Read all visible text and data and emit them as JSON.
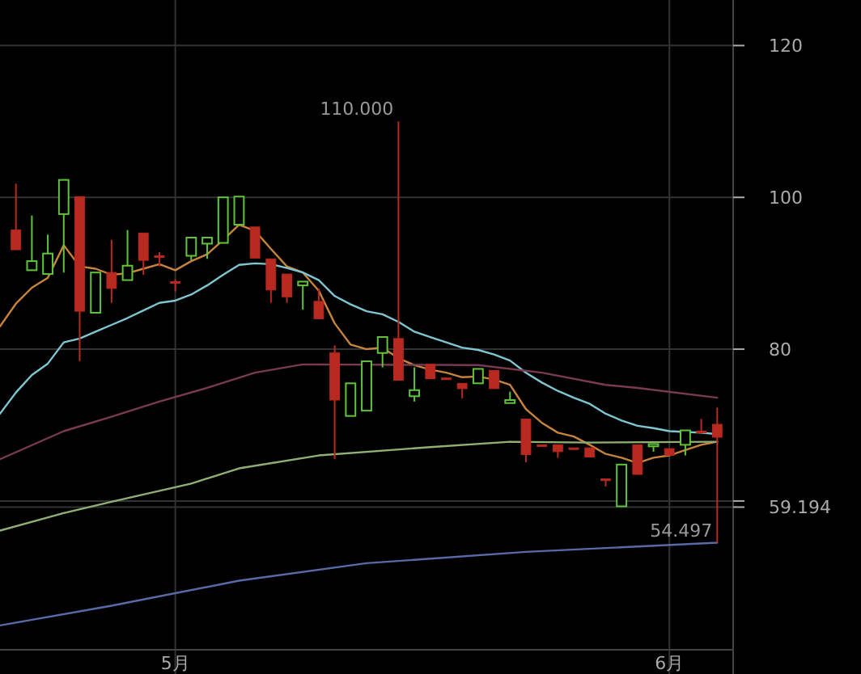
{
  "chart_data": {
    "type": "candlestick",
    "x": [
      "--04-21",
      "--04-22",
      "--04-23",
      "--04-24",
      "--04-25",
      "--04-26",
      "--04-27",
      "--04-28",
      "--04-29",
      "--04-30",
      "--05-01",
      "--05-02",
      "--05-03",
      "--05-04",
      "--05-05",
      "--05-06",
      "--05-07",
      "--05-08",
      "--05-09",
      "--05-10",
      "--05-11",
      "--05-12",
      "--05-13",
      "--05-14",
      "--05-15",
      "--05-16",
      "--05-17",
      "--05-18",
      "--05-19",
      "--05-20",
      "--05-21",
      "--05-22",
      "--05-23",
      "--05-24",
      "--05-25",
      "--05-26",
      "--05-27",
      "--05-28",
      "--05-29",
      "--05-30",
      "--05-31",
      "--06-01",
      "--06-02",
      "--06-03",
      "--06-04"
    ],
    "ohlc": [
      [
        95.7,
        101.8,
        93.1,
        93.1
      ],
      [
        90.4,
        97.6,
        90.4,
        91.6
      ],
      [
        89.9,
        95.1,
        89.9,
        92.6
      ],
      [
        97.8,
        102.3,
        90.1,
        102.3
      ],
      [
        100.1,
        100.1,
        78.4,
        85.0
      ],
      [
        84.8,
        90.1,
        84.8,
        90.1
      ],
      [
        90.1,
        94.4,
        86.1,
        88.0
      ],
      [
        89.1,
        95.7,
        89.1,
        91.0
      ],
      [
        95.3,
        95.3,
        89.8,
        91.7
      ],
      [
        92.3,
        92.8,
        90.9,
        92.3
      ],
      [
        88.9,
        89.2,
        87.6,
        88.9
      ],
      [
        92.3,
        94.7,
        91.7,
        94.7
      ],
      [
        93.9,
        94.7,
        91.9,
        94.7
      ],
      [
        94.0,
        100.0,
        94.0,
        100.0
      ],
      [
        96.4,
        100.1,
        96.4,
        100.1
      ],
      [
        96.1,
        96.1,
        92.0,
        92.0
      ],
      [
        91.9,
        91.9,
        86.1,
        87.8
      ],
      [
        89.9,
        89.9,
        86.1,
        86.9
      ],
      [
        88.4,
        88.9,
        85.2,
        88.9
      ],
      [
        86.3,
        88.0,
        84.0,
        84.0
      ],
      [
        79.5,
        80.5,
        65.5,
        73.3
      ],
      [
        71.2,
        75.5,
        71.2,
        75.5
      ],
      [
        71.9,
        78.4,
        71.9,
        78.4
      ],
      [
        79.5,
        81.6,
        77.6,
        81.6
      ],
      [
        81.4,
        110.0,
        75.9,
        75.9
      ],
      [
        73.8,
        77.6,
        73.1,
        74.6
      ],
      [
        78.0,
        78.0,
        76.1,
        76.1
      ],
      [
        76.2,
        76.2,
        76.0,
        76.0
      ],
      [
        75.5,
        75.5,
        73.5,
        74.8
      ],
      [
        75.5,
        77.4,
        75.5,
        77.4
      ],
      [
        77.2,
        77.2,
        74.8,
        74.8
      ],
      [
        72.9,
        74.4,
        72.9,
        73.3
      ],
      [
        70.8,
        70.8,
        65.1,
        66.1
      ],
      [
        67.4,
        67.4,
        67.4,
        67.4
      ],
      [
        67.4,
        67.4,
        65.7,
        66.5
      ],
      [
        67.0,
        67.0,
        67.0,
        67.0
      ],
      [
        67.0,
        67.0,
        65.8,
        65.8
      ],
      [
        62.9,
        62.9,
        61.9,
        62.9
      ],
      [
        59.3,
        64.8,
        59.3,
        64.8
      ],
      [
        67.4,
        67.4,
        63.5,
        63.5
      ],
      [
        67.2,
        67.5,
        66.5,
        67.5
      ],
      [
        66.9,
        66.9,
        66.0,
        66.0
      ],
      [
        67.4,
        69.3,
        66.0,
        69.3
      ],
      [
        69.2,
        70.8,
        69.0,
        69.0
      ],
      [
        70.1,
        72.3,
        54.497,
        68.4
      ]
    ],
    "colors": [
      "#b8291f",
      "#5fc43a",
      "#5fc43a",
      "#5fc43a",
      "#b8291f",
      "#5fc43a",
      "#b8291f",
      "#5fc43a",
      "#b8291f",
      "#b8291f",
      "#b8291f",
      "#5fc43a",
      "#5fc43a",
      "#5fc43a",
      "#5fc43a",
      "#b8291f",
      "#b8291f",
      "#b8291f",
      "#5fc43a",
      "#b8291f",
      "#b8291f",
      "#5fc43a",
      "#5fc43a",
      "#5fc43a",
      "#b8291f",
      "#5fc43a",
      "#b8291f",
      "#b8291f",
      "#b8291f",
      "#5fc43a",
      "#b8291f",
      "#5fc43a",
      "#b8291f",
      "#b8291f",
      "#b8291f",
      "#b8291f",
      "#b8291f",
      "#b8291f",
      "#5fc43a",
      "#b8291f",
      "#5fc43a",
      "#b8291f",
      "#5fc43a",
      "#b8291f",
      "#b8291f"
    ],
    "series": [
      {
        "type": "line",
        "color": "#c8843c",
        "x": [
          "--04-20",
          "--04-21",
          "--04-22",
          "--04-23",
          "--04-24",
          "--04-25",
          "--04-26",
          "--04-27",
          "--04-28",
          "--04-29",
          "--04-30",
          "--05-01",
          "--05-02",
          "--05-03",
          "--05-04",
          "--05-05",
          "--05-06",
          "--05-07",
          "--05-08",
          "--05-09",
          "--05-10",
          "--05-11",
          "--05-12",
          "--05-13",
          "--05-14",
          "--05-15",
          "--05-16",
          "--05-17",
          "--05-18",
          "--05-19",
          "--05-20",
          "--05-21",
          "--05-22",
          "--05-23",
          "--05-24",
          "--05-25",
          "--05-26",
          "--05-27",
          "--05-28",
          "--05-29",
          "--05-30",
          "--05-31",
          "--06-01",
          "--06-02",
          "--06-03",
          "--06-04"
        ],
        "values": [
          83.0,
          86.0,
          88.1,
          89.4,
          93.7,
          90.9,
          90.6,
          89.8,
          90.0,
          90.6,
          91.2,
          90.4,
          91.6,
          92.5,
          94.4,
          96.4,
          95.6,
          93.2,
          90.9,
          90.1,
          87.7,
          83.4,
          80.6,
          80.0,
          80.2,
          78.8,
          77.9,
          77.3,
          76.9,
          76.3,
          76.4,
          76.0,
          75.3,
          72.1,
          70.3,
          69.0,
          68.5,
          67.4,
          66.2,
          65.7,
          65.0,
          65.7,
          66.0,
          66.7,
          67.4,
          67.8
        ]
      },
      {
        "type": "line",
        "color": "#7ec6d2",
        "x": [
          "--04-20",
          "--04-21",
          "--04-22",
          "--04-23",
          "--04-24",
          "--04-25",
          "--04-26",
          "--04-27",
          "--04-28",
          "--04-29",
          "--04-30",
          "--05-01",
          "--05-02",
          "--05-03",
          "--05-04",
          "--05-05",
          "--05-06",
          "--05-07",
          "--05-08",
          "--05-09",
          "--05-10",
          "--05-11",
          "--05-12",
          "--05-13",
          "--05-14",
          "--05-15",
          "--05-16",
          "--05-17",
          "--05-18",
          "--05-19",
          "--05-20",
          "--05-21",
          "--05-22",
          "--05-23",
          "--05-24",
          "--05-25",
          "--05-26",
          "--05-27",
          "--05-28",
          "--05-29",
          "--05-30",
          "--05-31",
          "--06-01",
          "--06-02",
          "--06-03",
          "--06-04"
        ],
        "values": [
          71.5,
          74.3,
          76.6,
          78.1,
          80.9,
          81.4,
          82.3,
          83.2,
          84.1,
          85.1,
          86.1,
          86.4,
          87.2,
          88.4,
          89.8,
          91.1,
          91.3,
          91.2,
          90.7,
          90.1,
          89.1,
          87.0,
          85.9,
          85.0,
          84.6,
          83.6,
          82.3,
          81.6,
          80.9,
          80.2,
          79.9,
          79.3,
          78.5,
          76.9,
          75.6,
          74.5,
          73.6,
          72.8,
          71.5,
          70.6,
          69.9,
          69.6,
          69.2,
          69.1,
          69.0,
          68.8
        ]
      },
      {
        "type": "line",
        "color": "#7a3a52",
        "x": [
          "--04-20",
          "--04-24",
          "--04-27",
          "--04-30",
          "--05-03",
          "--05-06",
          "--05-09",
          "--05-20",
          "--05-24",
          "--05-28",
          "--05-30",
          "--06-04"
        ],
        "values": [
          65.5,
          69.2,
          71.1,
          73.1,
          74.9,
          76.9,
          78.0,
          77.9,
          76.9,
          75.3,
          74.9,
          73.6
        ]
      },
      {
        "type": "line",
        "color": "#8fb072",
        "x": [
          "--04-20",
          "--04-24",
          "--04-27",
          "--05-02",
          "--05-05",
          "--05-10",
          "--05-17",
          "--05-22",
          "--05-27",
          "--06-04"
        ],
        "values": [
          56.1,
          58.4,
          59.9,
          62.3,
          64.3,
          66.0,
          67.1,
          67.8,
          67.7,
          67.8
        ]
      },
      {
        "type": "line",
        "color": "#5a6aa8",
        "x": [
          "--04-20",
          "--04-27",
          "--05-05",
          "--05-13",
          "--05-23",
          "--06-04"
        ],
        "values": [
          43.6,
          46.2,
          49.5,
          51.8,
          53.3,
          54.5
        ]
      }
    ],
    "annotations": [
      {
        "text": "110.000",
        "x": "--05-15",
        "y": 110.0
      },
      {
        "text": "54.497",
        "x": "--06-04",
        "y": 54.497
      }
    ],
    "xlim": [
      "--04-20",
      "--06-05"
    ],
    "ylim": [
      40.4,
      126
    ],
    "xticks": [
      {
        "value": "--05-01",
        "label": "5月"
      },
      {
        "value": "--06-01",
        "label": "6月"
      }
    ],
    "yticks": [
      120,
      100,
      80,
      {
        "value": 60,
        "label": null
      },
      {
        "value": 59.194,
        "label": "59.194"
      }
    ],
    "grid": true
  }
}
